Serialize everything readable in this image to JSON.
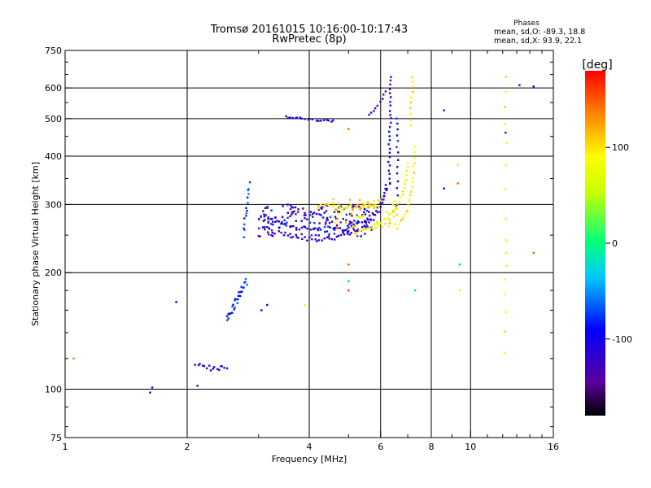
{
  "chart_data": {
    "type": "scatter",
    "title": "Tromsø 20161015 10:16:00-10:17:43",
    "subtitle": "RwPretec (8p)",
    "xlabel": "Frequency [MHz]",
    "ylabel": "Stationary phase Virtual Height [km]",
    "x_scale": "log",
    "y_scale": "log",
    "xlim": [
      1,
      16
    ],
    "ylim": [
      75,
      750
    ],
    "x_ticks": [
      1,
      2,
      4,
      6,
      8,
      10,
      16
    ],
    "y_ticks": [
      75,
      100,
      200,
      300,
      400,
      500,
      600,
      750
    ],
    "x_gridlines": [
      2,
      4,
      6,
      8,
      10
    ],
    "y_gridlines": [
      100,
      200,
      300,
      400,
      500,
      600
    ],
    "grid": true,
    "stats": {
      "heading": "Phases",
      "line_o": "mean, sd,O: -89.3, 18.8",
      "line_x": "mean, sd,X:  93.9, 22.1"
    },
    "colorbar": {
      "label": "[deg]",
      "ticks": [
        100,
        0,
        -100
      ],
      "range": [
        -180,
        180
      ],
      "placement": "right"
    },
    "series": [
      {
        "traces": [
          {
            "f": [
              3.0,
              3.4,
              3.8,
              4.2,
              4.6,
              5.0,
              5.5,
              6.0,
              6.2
            ],
            "h": [
              262,
              252,
              246,
              244,
              246,
              252,
              262,
              290,
              340
            ],
            "phase": -115,
            "n": 55,
            "jitter": 4
          },
          {
            "f": [
              3.1,
              3.6,
              4.0,
              4.5,
              5.0,
              5.5,
              5.9,
              6.3
            ],
            "h": [
              272,
              264,
              260,
              258,
              262,
              270,
              290,
              340
            ],
            "phase": -100,
            "n": 45,
            "jitter": 4
          },
          {
            "f": [
              6.3,
              6.3,
              6.35,
              6.35
            ],
            "h": [
              340,
              420,
              520,
              640
            ],
            "phase": -110,
            "n": 26,
            "jitter": 2
          },
          {
            "f": [
              6.6,
              6.6,
              6.6
            ],
            "h": [
              300,
              400,
              500
            ],
            "phase": -90,
            "n": 14,
            "jitter": 2
          },
          {
            "f": [
              3.5,
              3.8,
              4.2,
              4.6
            ],
            "h": [
              505,
              500,
              495,
              492
            ],
            "phase": -115,
            "n": 20,
            "jitter": 3
          },
          {
            "f": [
              5.6,
              5.9,
              6.2
            ],
            "h": [
              510,
              540,
              590
            ],
            "phase": -120,
            "n": 9,
            "jitter": 3
          },
          {
            "f": [
              2.5,
              2.65,
              2.8
            ],
            "h": [
              150,
              170,
              190
            ],
            "phase": -80,
            "n": 30,
            "jitter": 4
          },
          {
            "f": [
              2.1,
              2.3,
              2.5
            ],
            "h": [
              115,
              113,
              115
            ],
            "phase": -120,
            "n": 16,
            "jitter": 2
          },
          {
            "f": [
              2.75,
              2.8,
              2.85
            ],
            "h": [
              250,
              290,
              340
            ],
            "phase": -75,
            "n": 15,
            "jitter": 4
          }
        ],
        "cloud": {
          "f": [
            3.0,
            5.8
          ],
          "h": [
            248,
            300
          ],
          "phase": [
            -150,
            -70
          ],
          "n": 180
        }
      },
      {
        "traces": [
          {
            "f": [
              4.2,
              4.6,
              5.0,
              5.4,
              5.8
            ],
            "h": [
              298,
              296,
              294,
              296,
              300
            ],
            "phase": 110,
            "n": 35,
            "jitter": 5
          },
          {
            "f": [
              5.2,
              5.6,
              6.0,
              6.5,
              6.9,
              7.0
            ],
            "h": [
              252,
              258,
              268,
              290,
              330,
              380
            ],
            "phase": 90,
            "n": 35,
            "jitter": 3
          },
          {
            "f": [
              6.6,
              7.0,
              7.2,
              7.3
            ],
            "h": [
              262,
              290,
              340,
              420
            ],
            "phase": 95,
            "n": 22,
            "jitter": 3
          },
          {
            "f": [
              7.1,
              7.15,
              7.2
            ],
            "h": [
              480,
              560,
              640
            ],
            "phase": 98,
            "n": 10,
            "jitter": 2
          },
          {
            "f": [
              12.2,
              12.2,
              12.2
            ],
            "h": [
              125,
              250,
              640
            ],
            "phase": 95,
            "n": 16,
            "jitter": 1
          }
        ],
        "cloud": {
          "f": [
            4.5,
            6.6
          ],
          "h": [
            262,
            310
          ],
          "phase": [
            60,
            130
          ],
          "n": 60
        }
      }
    ],
    "isolated_points": [
      {
        "f": 1.05,
        "h": 120,
        "phase": 140
      },
      {
        "f": 1.62,
        "h": 98,
        "phase": -110
      },
      {
        "f": 1.64,
        "h": 101,
        "phase": -105
      },
      {
        "f": 1.88,
        "h": 168,
        "phase": -100
      },
      {
        "f": 2.12,
        "h": 102,
        "phase": -100
      },
      {
        "f": 3.05,
        "h": 160,
        "phase": -130
      },
      {
        "f": 3.15,
        "h": 165,
        "phase": -90
      },
      {
        "f": 3.9,
        "h": 165,
        "phase": 100
      },
      {
        "f": 5.0,
        "h": 470,
        "phase": 150
      },
      {
        "f": 5.0,
        "h": 210,
        "phase": 150
      },
      {
        "f": 5.0,
        "h": 190,
        "phase": -40
      },
      {
        "f": 5.0,
        "h": 180,
        "phase": 160
      },
      {
        "f": 7.3,
        "h": 180,
        "phase": -30
      },
      {
        "f": 8.6,
        "h": 330,
        "phase": -90
      },
      {
        "f": 8.6,
        "h": 525,
        "phase": -110
      },
      {
        "f": 9.3,
        "h": 380,
        "phase": 100
      },
      {
        "f": 9.3,
        "h": 340,
        "phase": 150
      },
      {
        "f": 9.4,
        "h": 210,
        "phase": -40
      },
      {
        "f": 9.4,
        "h": 180,
        "phase": 100
      },
      {
        "f": 12.2,
        "h": 460,
        "phase": -120
      },
      {
        "f": 13.2,
        "h": 610,
        "phase": -100
      },
      {
        "f": 14.3,
        "h": 605,
        "phase": -90
      },
      {
        "f": 14.3,
        "h": 225,
        "phase": 150
      }
    ]
  }
}
